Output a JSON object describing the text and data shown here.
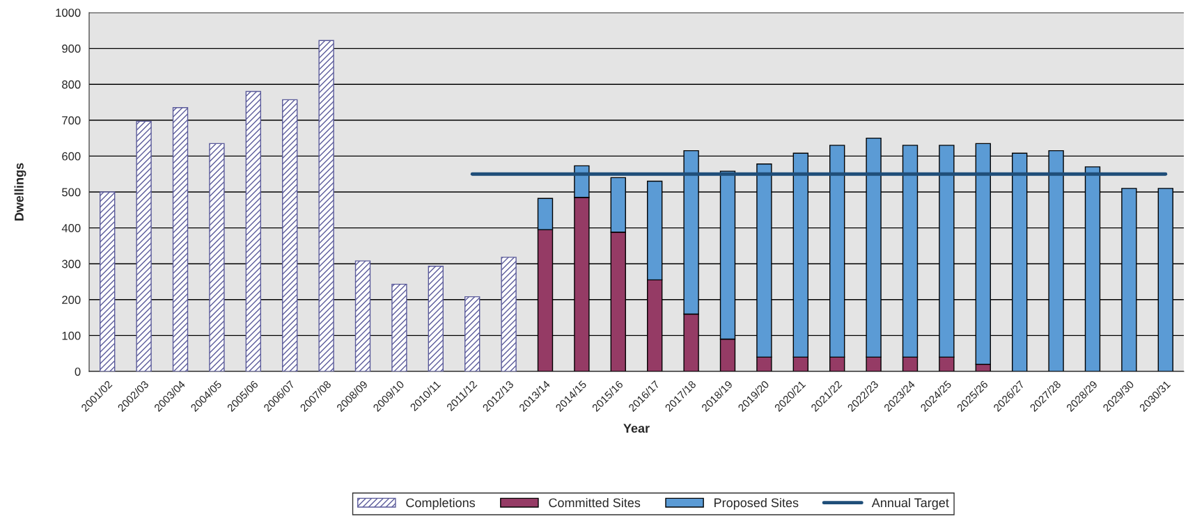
{
  "chart_data": {
    "type": "bar",
    "stacked": true,
    "xlabel": "Year",
    "ylabel": "Dwellings",
    "categories": [
      "2001/02",
      "2002/03",
      "2003/04",
      "2004/05",
      "2005/06",
      "2006/07",
      "2007/08",
      "2008/09",
      "2009/10",
      "2010/11",
      "2011/12",
      "2012/13",
      "2013/14",
      "2014/15",
      "2015/16",
      "2016/17",
      "2017/18",
      "2018/19",
      "2019/20",
      "2020/21",
      "2021/22",
      "2022/23",
      "2023/24",
      "2024/25",
      "2025/26",
      "2026/27",
      "2027/28",
      "2028/29",
      "2029/30",
      "2030/31"
    ],
    "series": [
      {
        "name": "Completions",
        "color": "#5a5a9a",
        "values": [
          500,
          697,
          735,
          635,
          780,
          757,
          922,
          308,
          243,
          293,
          208,
          318,
          null,
          null,
          null,
          null,
          null,
          null,
          null,
          null,
          null,
          null,
          null,
          null,
          null,
          null,
          null,
          null,
          null,
          null
        ]
      },
      {
        "name": "Committed Sites",
        "color": "#953b65",
        "values": [
          null,
          null,
          null,
          null,
          null,
          null,
          null,
          null,
          null,
          null,
          null,
          null,
          395,
          485,
          388,
          255,
          160,
          90,
          40,
          40,
          40,
          40,
          40,
          40,
          20,
          null,
          null,
          null,
          null,
          null
        ]
      },
      {
        "name": "Proposed Sites",
        "color": "#5b9bd5",
        "values": [
          null,
          null,
          null,
          null,
          null,
          null,
          null,
          null,
          null,
          null,
          null,
          null,
          87,
          88,
          152,
          275,
          455,
          468,
          538,
          568,
          590,
          610,
          590,
          590,
          615,
          608,
          615,
          570,
          510,
          510
        ]
      },
      {
        "name": "Annual Target",
        "type": "line",
        "color": "#1f4e79",
        "values": [
          null,
          null,
          null,
          null,
          null,
          null,
          null,
          null,
          null,
          null,
          550,
          550,
          550,
          550,
          550,
          550,
          550,
          550,
          550,
          550,
          550,
          550,
          550,
          550,
          550,
          550,
          550,
          550,
          550,
          550
        ]
      }
    ],
    "ylim": [
      0,
      1000
    ],
    "yticks": [
      0,
      100,
      200,
      300,
      400,
      500,
      600,
      700,
      800,
      900,
      1000
    ],
    "grid": "y",
    "legend": "bottom",
    "marker": "none",
    "line_style": "solid"
  }
}
